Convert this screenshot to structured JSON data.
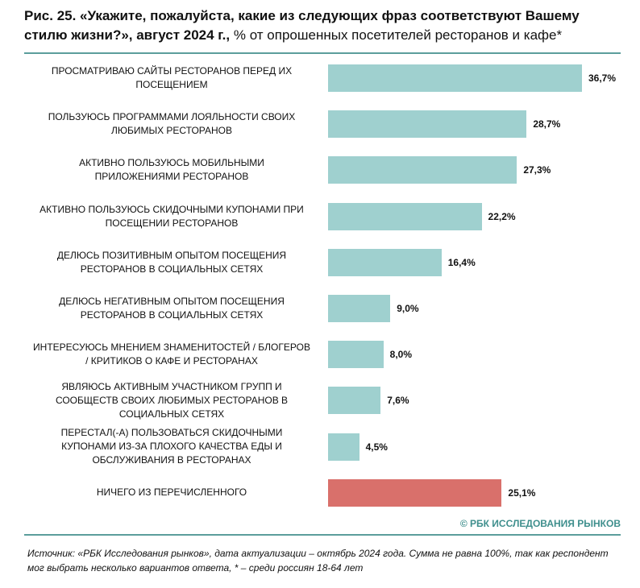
{
  "chart_data": {
    "type": "bar",
    "orientation": "horizontal",
    "title": "Рис. 25. «Укажите, пожалуйста, какие из следующих фраз соответствуют Вашему стилю жизни?», август 2024 г.,",
    "subtitle": "% от опрошенных посетителей ресторанов и кафе*",
    "categories": [
      "ПРОСМАТРИВАЮ САЙТЫ РЕСТОРАНОВ ПЕРЕД ИХ\nПОСЕЩЕНИЕМ",
      "ПОЛЬЗУЮСЬ ПРОГРАММАМИ ЛОЯЛЬНОСТИ СВОИХ\nЛЮБИМЫХ РЕСТОРАНОВ",
      "АКТИВНО ПОЛЬЗУЮСЬ МОБИЛЬНЫМИ\nПРИЛОЖЕНИЯМИ РЕСТОРАНОВ",
      "АКТИВНО ПОЛЬЗУЮСЬ СКИДОЧНЫМИ КУПОНАМИ ПРИ\nПОСЕЩЕНИИ РЕСТОРАНОВ",
      "ДЕЛЮСЬ ПОЗИТИВНЫМ ОПЫТОМ ПОСЕЩЕНИЯ\nРЕСТОРАНОВ В СОЦИАЛЬНЫХ СЕТЯХ",
      "ДЕЛЮСЬ НЕГАТИВНЫМ ОПЫТОМ ПОСЕЩЕНИЯ\nРЕСТОРАНОВ В СОЦИАЛЬНЫХ СЕТЯХ",
      "ИНТЕРЕСУЮСЬ МНЕНИЕМ ЗНАМЕНИТОСТЕЙ / БЛОГЕРОВ\n/ КРИТИКОВ О КАФЕ И РЕСТОРАНАХ",
      "ЯВЛЯЮСЬ АКТИВНЫМ УЧАСТНИКОМ ГРУПП И\nСООБЩЕСТВ СВОИХ ЛЮБИМЫХ РЕСТОРАНОВ В\nСОЦИАЛЬНЫХ СЕТЯХ",
      "ПЕРЕСТАЛ(-А) ПОЛЬЗОВАТЬСЯ СКИДОЧНЫМИ\nКУПОНАМИ ИЗ-ЗА ПЛОХОГО КАЧЕСТВА ЕДЫ И\nОБСЛУЖИВАНИЯ В РЕСТОРАНАХ",
      "НИЧЕГО ИЗ ПЕРЕЧИСЛЕННОГО"
    ],
    "values": [
      36.7,
      28.7,
      27.3,
      22.2,
      16.4,
      9.0,
      8.0,
      7.6,
      4.5,
      25.1
    ],
    "value_labels": [
      "36,7%",
      "28,7%",
      "27,3%",
      "22,2%",
      "16,4%",
      "9,0%",
      "8,0%",
      "7,6%",
      "4,5%",
      "25,1%"
    ],
    "colors": [
      "#9fd0cf",
      "#9fd0cf",
      "#9fd0cf",
      "#9fd0cf",
      "#9fd0cf",
      "#9fd0cf",
      "#9fd0cf",
      "#9fd0cf",
      "#9fd0cf",
      "#d9706b"
    ],
    "source": "© РБК ИССЛЕДОВАНИЯ РЫНКОВ",
    "note": "Источник: «РБК Исследования рынков», дата актуализации – октябрь 2024 года. Сумма не равна 100%, так как респондент мог выбрать несколько вариантов ответа, * – среди россиян 18-64 лет"
  }
}
